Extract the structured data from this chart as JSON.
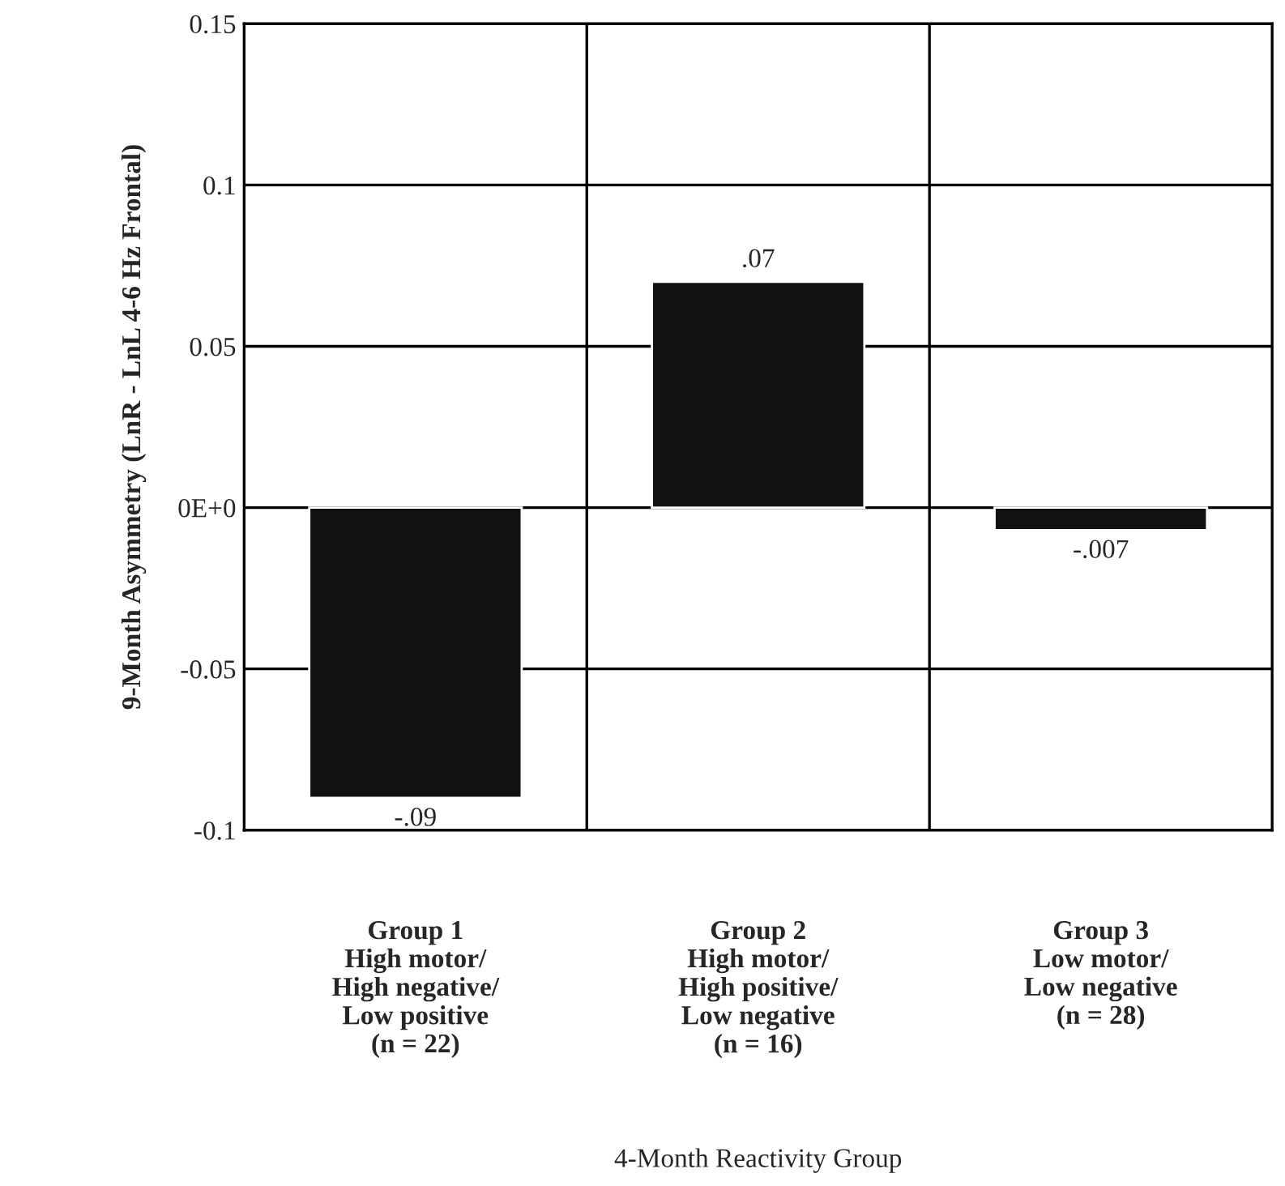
{
  "chart_data": {
    "type": "bar",
    "xlabel": "4-Month Reactivity Group",
    "ylabel": "9-Month Asymmetry (LnR - LnL 4-6 Hz Frontal)",
    "categories": [
      "Group 1\nHigh motor/\nHigh negative/\nLow positive\n(n = 22)",
      "Group 2\nHigh motor/\nHigh positive/\nLow negative\n(n = 16)",
      "Group 3\nLow motor/\nLow negative\n(n = 28)"
    ],
    "values": [
      -0.09,
      0.07,
      -0.007
    ],
    "value_labels": [
      "-.09",
      ".07",
      "-.007"
    ],
    "color": "#111111",
    "ylim": [
      -0.1,
      0.15
    ],
    "yticks": [
      -0.1,
      -0.05,
      {
        "value": 0,
        "label": "0E+0"
      },
      0.05,
      0.1,
      0.15
    ],
    "grid": true,
    "legend": false
  }
}
